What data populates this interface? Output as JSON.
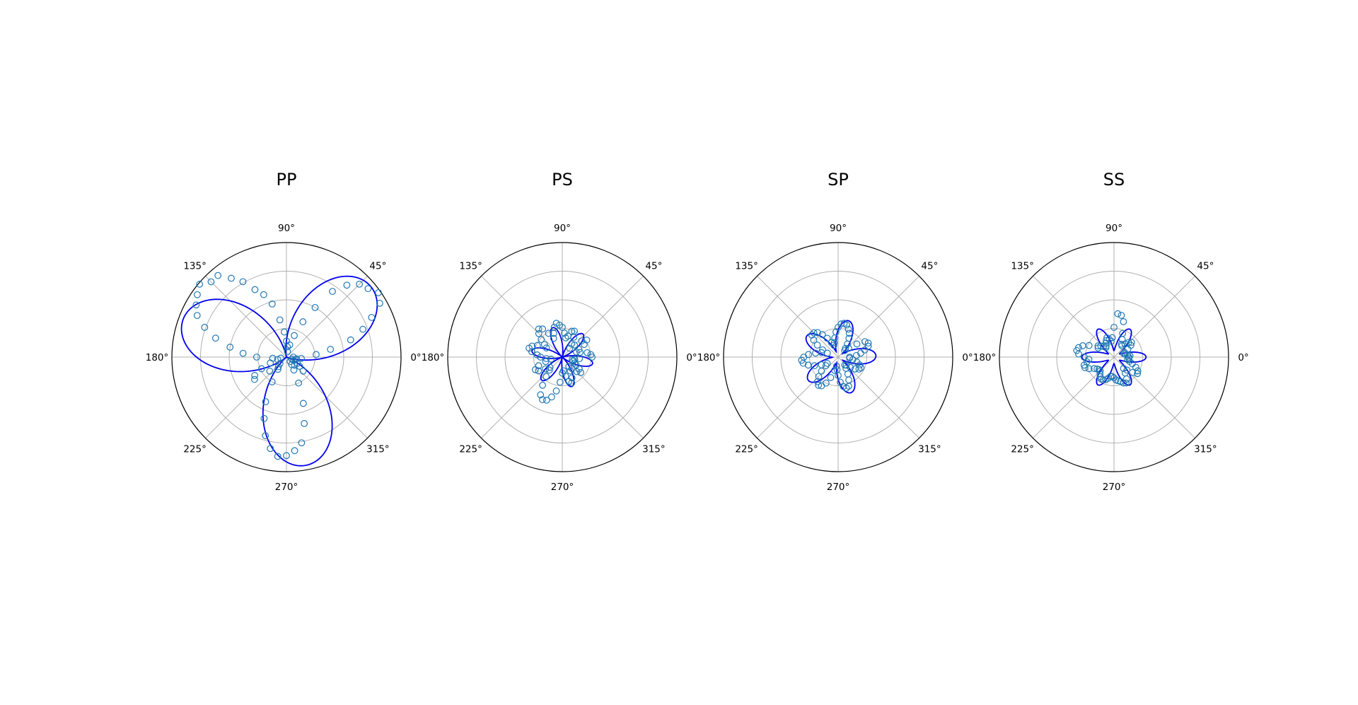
{
  "figure": {
    "panels": [
      "PP",
      "PS",
      "SP",
      "SS"
    ],
    "angle_tick_labels": [
      "0°",
      "45°",
      "90°",
      "135°",
      "180°",
      "225°",
      "270°",
      "315°"
    ]
  },
  "colors": {
    "fit_line": "#0000ee",
    "markers": "#1f77b4",
    "grid": "#b0b0b0",
    "frame": "#000000"
  },
  "chart_data": [
    {
      "type": "scatter",
      "projection": "polar",
      "title": "PP",
      "theta_unit": "degrees",
      "rmax": 1.0,
      "radial_gridlines": [
        0.25,
        0.5,
        0.75,
        1.0
      ],
      "radial_tick_labels": false,
      "grid": true,
      "series": [
        {
          "kind": "line",
          "model": "A * |cos(1.5*(theta - phase))|^p",
          "A": 0.96,
          "phase_deg": 40,
          "exponent": 1.4
        },
        {
          "kind": "markers",
          "theta_deg": [
            0,
            5,
            10,
            15,
            20,
            25,
            30,
            35,
            40,
            45,
            50,
            55,
            60,
            65,
            70,
            75,
            80,
            85,
            90,
            95,
            100,
            105,
            110,
            115,
            120,
            125,
            130,
            135,
            140,
            145,
            150,
            155,
            160,
            165,
            170,
            175,
            180,
            185,
            190,
            195,
            200,
            205,
            210,
            215,
            220,
            225,
            230,
            235,
            240,
            245,
            250,
            255,
            260,
            265,
            270,
            275,
            280,
            285,
            290,
            295,
            300,
            305,
            310,
            315,
            320,
            325,
            330,
            335,
            340,
            345,
            350,
            355
          ],
          "r": [
            0.06,
            0.26,
            0.39,
            0.58,
            0.71,
            0.82,
            0.94,
            0.98,
            0.93,
            0.9,
            0.82,
            0.7,
            0.5,
            0.34,
            0.2,
            0.11,
            0.05,
            0.09,
            0.14,
            0.22,
            0.33,
            0.48,
            0.58,
            0.65,
            0.76,
            0.84,
            0.93,
            0.93,
            0.99,
            0.95,
            0.91,
            0.86,
            0.76,
            0.64,
            0.5,
            0.38,
            0.26,
            0.12,
            0.05,
            0.08,
            0.15,
            0.24,
            0.32,
            0.34,
            0.19,
            0.08,
            0.11,
            0.13,
            0.25,
            0.43,
            0.57,
            0.71,
            0.81,
            0.87,
            0.86,
            0.82,
            0.76,
            0.6,
            0.43,
            0.25,
            0.13,
            0.08,
            0.05,
            0.1,
            0.19,
            0.14,
            0.11,
            0.07,
            0.05,
            0.08,
            0.09,
            0.13
          ]
        }
      ]
    },
    {
      "type": "scatter",
      "projection": "polar",
      "title": "PS",
      "theta_unit": "degrees",
      "rmax": 1.0,
      "radial_gridlines": [
        0.25,
        0.5,
        0.75,
        1.0
      ],
      "radial_tick_labels": false,
      "grid": true,
      "series": [
        {
          "kind": "line",
          "model": "A * |sin(3*(theta - phase))|^p",
          "A": 0.27,
          "phase_deg": 18,
          "exponent": 1.6
        },
        {
          "kind": "markers",
          "theta_deg": [
            0,
            5,
            10,
            15,
            20,
            25,
            30,
            35,
            40,
            45,
            50,
            55,
            60,
            65,
            70,
            75,
            80,
            85,
            90,
            95,
            100,
            105,
            110,
            115,
            120,
            125,
            130,
            135,
            140,
            145,
            150,
            155,
            160,
            165,
            170,
            175,
            180,
            185,
            190,
            195,
            200,
            205,
            210,
            215,
            220,
            225,
            230,
            235,
            240,
            245,
            250,
            255,
            260,
            265,
            270,
            275,
            280,
            285,
            290,
            295,
            300,
            305,
            310,
            315,
            320,
            325,
            330,
            335,
            340,
            345,
            350,
            355
          ],
          "r": [
            0.26,
            0.25,
            0.22,
            0.16,
            0.13,
            0.16,
            0.22,
            0.26,
            0.22,
            0.15,
            0.1,
            0.14,
            0.2,
            0.25,
            0.24,
            0.19,
            0.17,
            0.21,
            0.26,
            0.28,
            0.3,
            0.27,
            0.22,
            0.18,
            0.24,
            0.3,
            0.32,
            0.29,
            0.24,
            0.19,
            0.16,
            0.24,
            0.28,
            0.3,
            0.27,
            0.22,
            0.19,
            0.14,
            0.1,
            0.15,
            0.22,
            0.26,
            0.24,
            0.18,
            0.14,
            0.16,
            0.22,
            0.3,
            0.38,
            0.41,
            0.4,
            0.36,
            0.3,
            0.22,
            0.14,
            0.12,
            0.17,
            0.22,
            0.24,
            0.2,
            0.14,
            0.1,
            0.13,
            0.18,
            0.21,
            0.18,
            0.14,
            0.12,
            0.1,
            0.09,
            0.11,
            0.15
          ]
        }
      ]
    },
    {
      "type": "scatter",
      "projection": "polar",
      "title": "SP",
      "theta_unit": "degrees",
      "rmax": 1.0,
      "radial_gridlines": [
        0.25,
        0.5,
        0.75,
        1.0
      ],
      "radial_tick_labels": false,
      "grid": true,
      "series": [
        {
          "kind": "line",
          "model": "A * (0.15 + 0.85*|cos(2.5*(theta - phase))|^p)",
          "A": 0.33,
          "phase_deg": 2,
          "exponent": 1.5
        },
        {
          "kind": "markers",
          "theta_deg": [
            0,
            5,
            10,
            15,
            20,
            25,
            30,
            35,
            40,
            45,
            50,
            55,
            60,
            65,
            70,
            75,
            80,
            85,
            90,
            95,
            100,
            105,
            110,
            115,
            120,
            125,
            130,
            135,
            140,
            145,
            150,
            155,
            160,
            165,
            170,
            175,
            180,
            185,
            190,
            195,
            200,
            205,
            210,
            215,
            220,
            225,
            230,
            235,
            240,
            245,
            250,
            255,
            260,
            265,
            270,
            275,
            280,
            285,
            290,
            295,
            300,
            305,
            310,
            315,
            320,
            325,
            330,
            335,
            340,
            345,
            350,
            355
          ],
          "r": [
            0.1,
            0.16,
            0.2,
            0.24,
            0.28,
            0.29,
            0.27,
            0.2,
            0.12,
            0.08,
            0.1,
            0.14,
            0.19,
            0.23,
            0.26,
            0.29,
            0.3,
            0.29,
            0.26,
            0.22,
            0.17,
            0.13,
            0.11,
            0.14,
            0.19,
            0.24,
            0.28,
            0.3,
            0.3,
            0.26,
            0.21,
            0.15,
            0.1,
            0.15,
            0.2,
            0.26,
            0.3,
            0.32,
            0.31,
            0.27,
            0.22,
            0.16,
            0.11,
            0.13,
            0.19,
            0.24,
            0.28,
            0.3,
            0.29,
            0.25,
            0.19,
            0.12,
            0.08,
            0.11,
            0.16,
            0.22,
            0.26,
            0.28,
            0.27,
            0.22,
            0.17,
            0.12,
            0.09,
            0.1,
            0.14,
            0.18,
            0.21,
            0.22,
            0.2,
            0.17,
            0.13,
            0.1
          ]
        }
      ]
    },
    {
      "type": "scatter",
      "projection": "polar",
      "title": "SS",
      "theta_unit": "degrees",
      "rmax": 1.0,
      "radial_gridlines": [
        0.25,
        0.5,
        0.75,
        1.0
      ],
      "radial_tick_labels": false,
      "grid": true,
      "series": [
        {
          "kind": "line",
          "model": "A * (0.2 + 0.8*|cos(3*(theta - phase))|^p)",
          "A": 0.28,
          "phase_deg": 0,
          "exponent": 2.0
        },
        {
          "kind": "markers",
          "theta_deg": [
            0,
            5,
            10,
            15,
            20,
            25,
            30,
            35,
            40,
            45,
            50,
            55,
            60,
            65,
            70,
            75,
            80,
            85,
            90,
            95,
            100,
            105,
            110,
            115,
            120,
            125,
            130,
            135,
            140,
            145,
            150,
            155,
            160,
            165,
            170,
            175,
            180,
            185,
            190,
            195,
            200,
            205,
            210,
            215,
            220,
            225,
            230,
            235,
            240,
            245,
            250,
            255,
            260,
            265,
            270,
            275,
            280,
            285,
            290,
            295,
            300,
            305,
            310,
            315,
            320,
            325,
            330,
            335,
            340,
            345,
            350,
            355
          ],
          "r": [
            0.13,
            0.14,
            0.12,
            0.1,
            0.09,
            0.1,
            0.14,
            0.18,
            0.2,
            0.18,
            0.15,
            0.12,
            0.13,
            0.17,
            0.22,
            0.32,
            0.37,
            0.38,
            0.26,
            0.17,
            0.14,
            0.16,
            0.18,
            0.16,
            0.14,
            0.12,
            0.11,
            0.13,
            0.15,
            0.17,
            0.16,
            0.24,
            0.29,
            0.32,
            0.33,
            0.31,
            0.26,
            0.22,
            0.24,
            0.27,
            0.27,
            0.24,
            0.2,
            0.18,
            0.17,
            0.17,
            0.19,
            0.21,
            0.22,
            0.22,
            0.21,
            0.19,
            0.17,
            0.17,
            0.18,
            0.2,
            0.21,
            0.22,
            0.24,
            0.25,
            0.22,
            0.17,
            0.13,
            0.16,
            0.21,
            0.25,
            0.24,
            0.21,
            0.17,
            0.14,
            0.12,
            0.13
          ]
        }
      ]
    }
  ]
}
